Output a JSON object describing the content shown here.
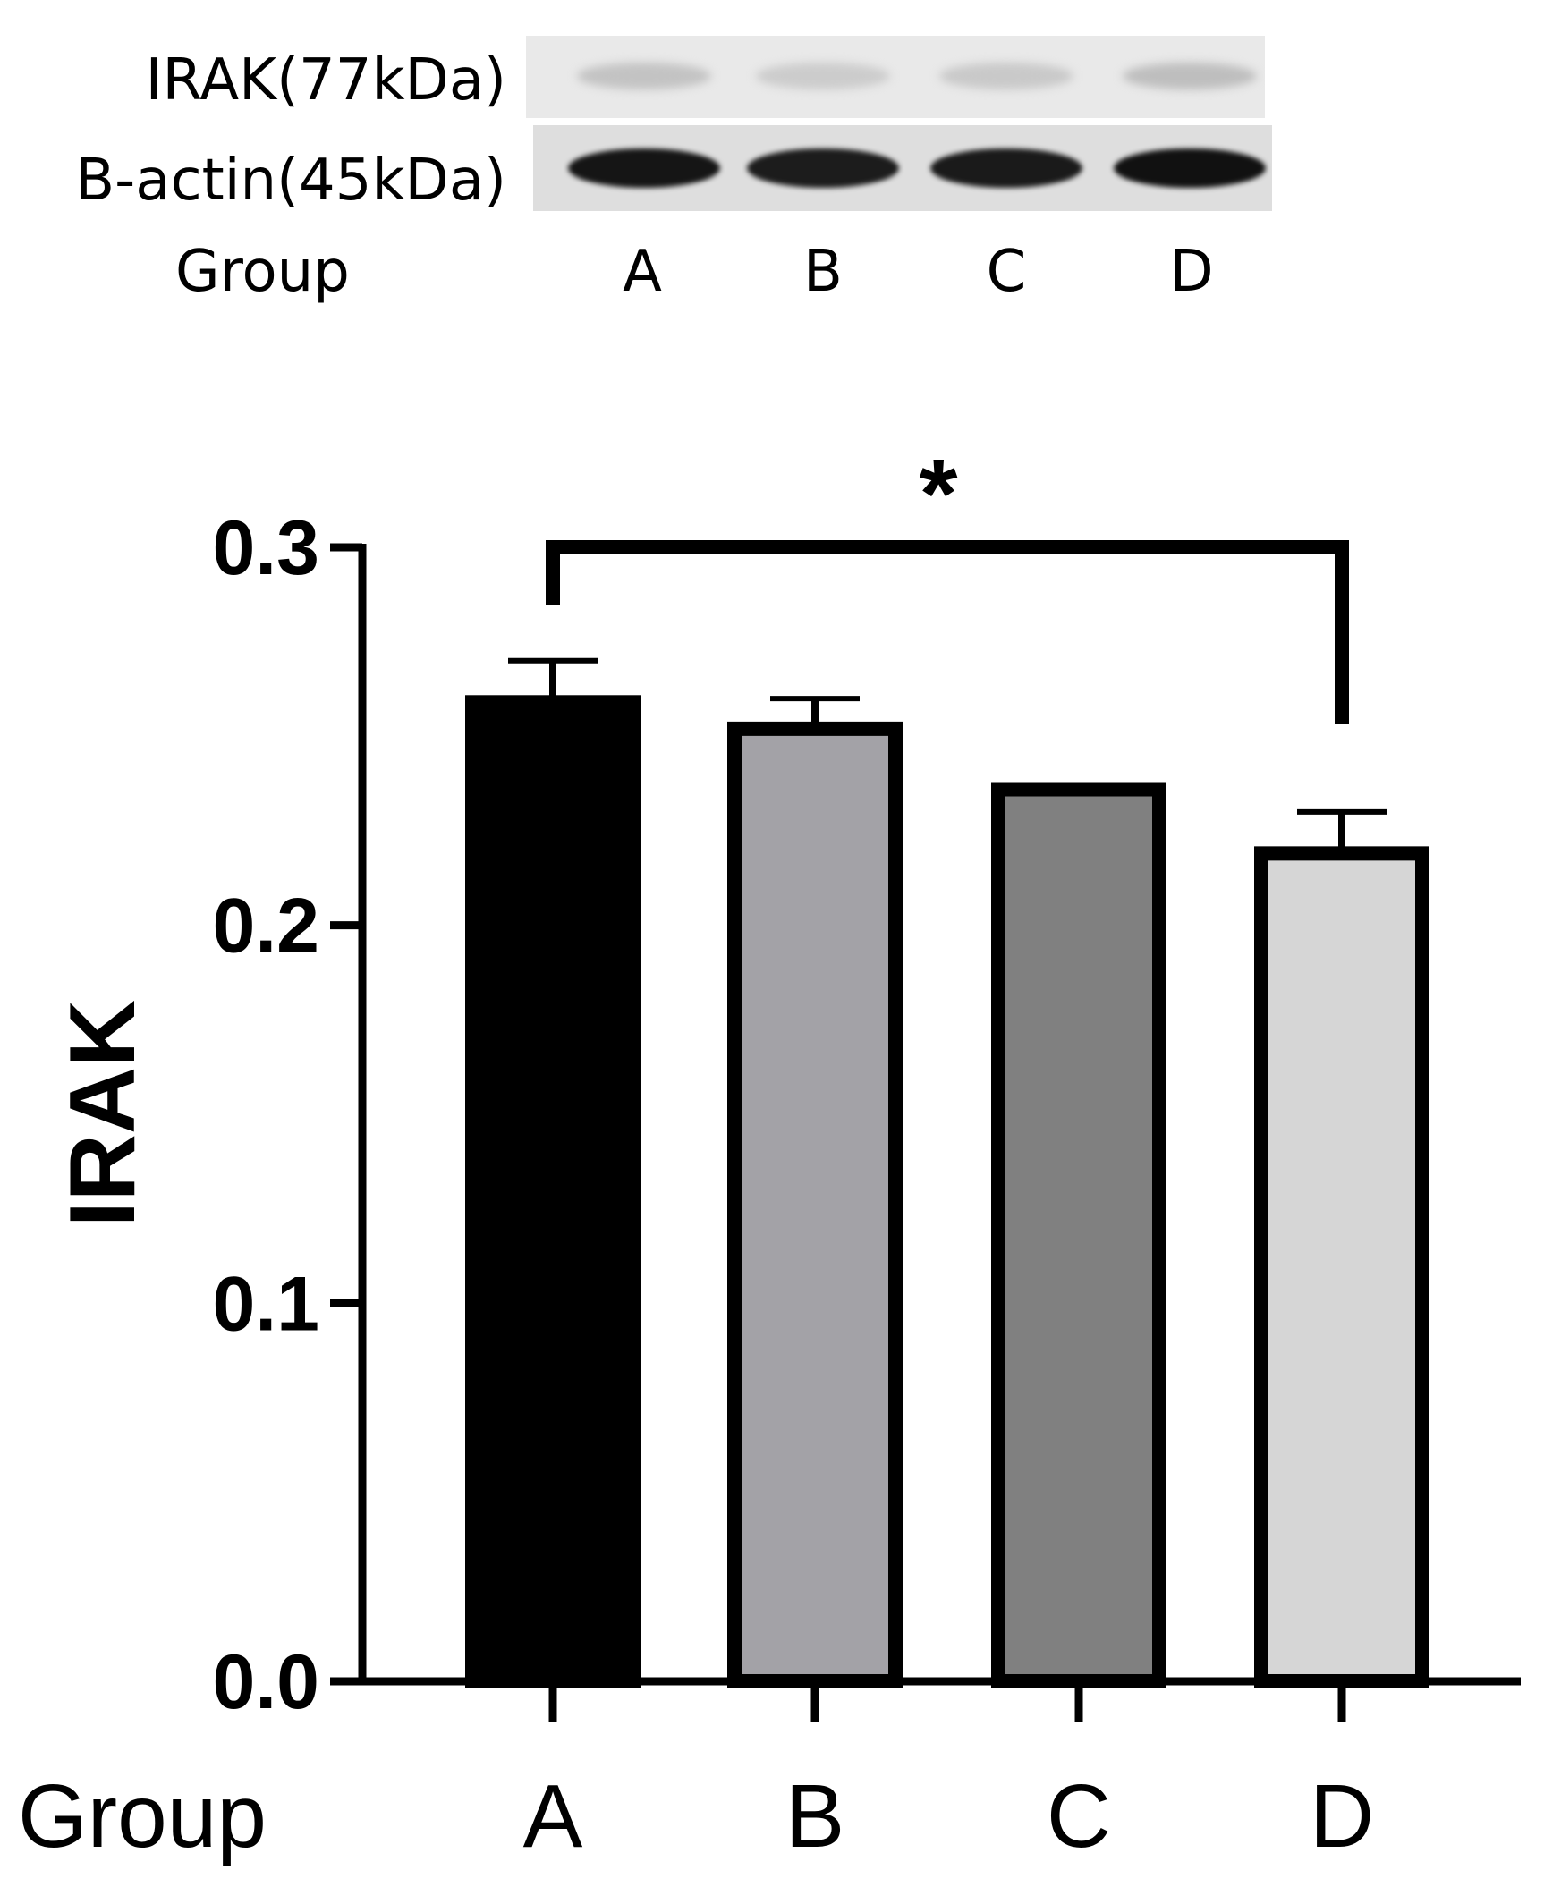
{
  "blot": {
    "rows": [
      {
        "label": "IRAK(77kDa)",
        "band_intensity": [
          0.18,
          0.14,
          0.15,
          0.2
        ]
      },
      {
        "label": "B-actin(45kDa)",
        "band_intensity": [
          0.95,
          0.92,
          0.93,
          0.97
        ]
      }
    ],
    "group_label": "Group",
    "lanes": [
      "A",
      "B",
      "C",
      "D"
    ]
  },
  "chart_data": {
    "type": "bar",
    "categories": [
      "A",
      "B",
      "C",
      "D"
    ],
    "values": [
      0.259,
      0.252,
      0.236,
      0.219
    ],
    "errors": [
      0.011,
      0.008,
      0.001,
      0.011
    ],
    "colors": [
      "#000000",
      "#a3a2a7",
      "#808080",
      "#d6d6d6"
    ],
    "ylabel": "IRAK",
    "xlabel": "Group",
    "ylim": [
      0,
      0.3
    ],
    "yticks": [
      "0.0",
      "0.1",
      "0.2",
      "0.3"
    ],
    "significance": {
      "from": "A",
      "to": "D",
      "label": "*"
    },
    "grid": false
  }
}
